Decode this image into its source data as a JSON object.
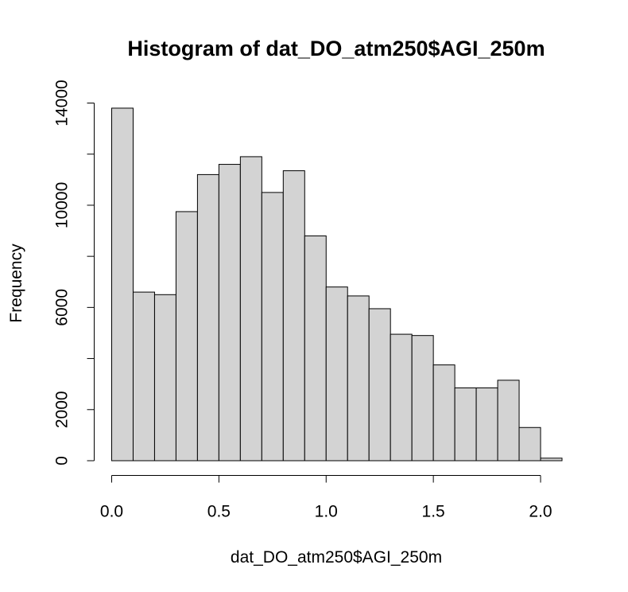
{
  "chart_data": {
    "type": "bar",
    "title": "Histogram of dat_DO_atm250$AGI_250m",
    "xlabel": "dat_DO_atm250$AGI_250m",
    "ylabel": "Frequency",
    "bin_edges": [
      0.0,
      0.1,
      0.2,
      0.3,
      0.4,
      0.5,
      0.6,
      0.7,
      0.8,
      0.9,
      1.0,
      1.1,
      1.2,
      1.3,
      1.4,
      1.5,
      1.6,
      1.7,
      1.8,
      1.9,
      2.0,
      2.1
    ],
    "values": [
      13800,
      6600,
      6500,
      9750,
      11200,
      11600,
      11900,
      10500,
      11350,
      8800,
      6800,
      6450,
      5950,
      4950,
      4900,
      3750,
      2850,
      2850,
      3150,
      1300,
      100
    ],
    "xlim": [
      0.0,
      2.1
    ],
    "ylim": [
      0,
      14000
    ],
    "x_ticks": [
      0.0,
      0.5,
      1.0,
      1.5,
      2.0
    ],
    "x_tick_labels": [
      "0.0",
      "0.5",
      "1.0",
      "1.5",
      "2.0"
    ],
    "y_ticks": [
      0,
      2000,
      6000,
      10000,
      14000
    ],
    "y_tick_labels": [
      "0",
      "2000",
      "6000",
      "10000",
      "14000"
    ],
    "y_minor_ticks": [
      4000,
      8000,
      12000
    ],
    "bar_color": "#d3d3d3",
    "grid": false
  }
}
